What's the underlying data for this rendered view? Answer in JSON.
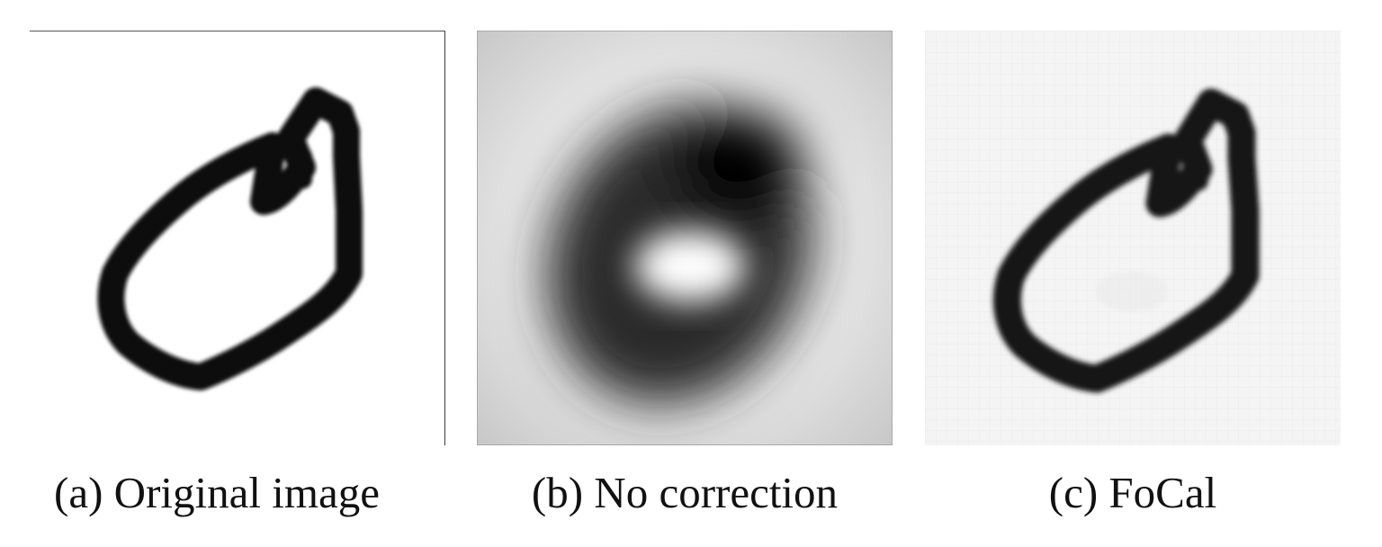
{
  "figure": {
    "panels": [
      {
        "caption": "(a) Original image"
      },
      {
        "caption": "(b) No correction"
      },
      {
        "caption": "(c) FoCal"
      }
    ]
  }
}
